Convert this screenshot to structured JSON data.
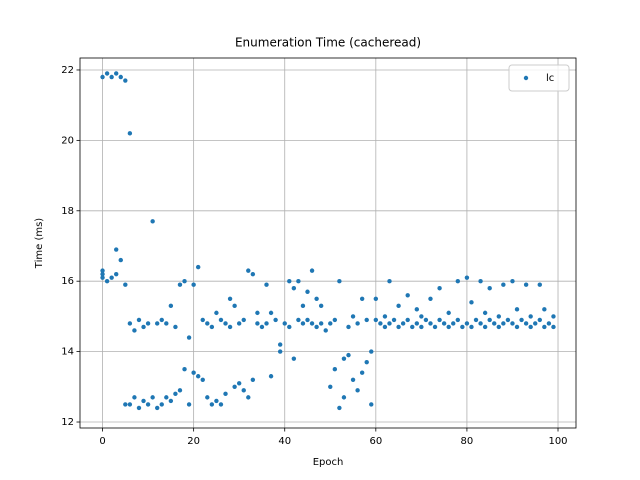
{
  "chart_data": {
    "type": "scatter",
    "title": "Enumeration Time (cacheread)",
    "x_label": "Epoch",
    "y_label": "Time (ms)",
    "xlim": [
      -4.95,
      103.95
    ],
    "ylim": [
      11.83,
      22.34
    ],
    "xticks": [
      0,
      20,
      40,
      60,
      80,
      100
    ],
    "yticks": [
      12,
      14,
      16,
      18,
      20,
      22
    ],
    "grid": true,
    "legend": "upper right",
    "series": [
      {
        "name": "lc",
        "color": "#1f77b4",
        "x": [
          0,
          0,
          0,
          0,
          1,
          1,
          2,
          2,
          3,
          3,
          3,
          4,
          4,
          5,
          5,
          5,
          6,
          6,
          6,
          7,
          7,
          8,
          8,
          9,
          9,
          10,
          10,
          11,
          11,
          12,
          12,
          13,
          13,
          14,
          14,
          15,
          15,
          16,
          16,
          17,
          17,
          18,
          18,
          19,
          19,
          20,
          20,
          21,
          21,
          22,
          22,
          23,
          23,
          24,
          24,
          25,
          25,
          26,
          26,
          27,
          27,
          28,
          28,
          29,
          29,
          30,
          30,
          31,
          31,
          32,
          32,
          33,
          33,
          34,
          34,
          35,
          36,
          36,
          37,
          37,
          38,
          39,
          39,
          40,
          41,
          41,
          42,
          42,
          43,
          43,
          44,
          44,
          45,
          45,
          46,
          46,
          47,
          47,
          48,
          48,
          49,
          50,
          50,
          51,
          51,
          52,
          52,
          53,
          53,
          54,
          54,
          55,
          55,
          56,
          56,
          57,
          57,
          58,
          58,
          59,
          59,
          60,
          60,
          61,
          62,
          62,
          63,
          63,
          64,
          65,
          65,
          66,
          67,
          67,
          68,
          69,
          69,
          70,
          70,
          71,
          72,
          72,
          73,
          74,
          74,
          75,
          76,
          76,
          77,
          78,
          78,
          79,
          80,
          80,
          81,
          81,
          82,
          83,
          83,
          84,
          84,
          85,
          85,
          86,
          87,
          87,
          88,
          88,
          89,
          90,
          90,
          91,
          91,
          92,
          93,
          93,
          94,
          94,
          95,
          96,
          96,
          97,
          97,
          98,
          99,
          99
        ],
        "values": [
          16.3,
          16.2,
          16.1,
          21.8,
          21.9,
          16.0,
          16.1,
          21.8,
          21.9,
          16.9,
          16.2,
          21.8,
          16.6,
          21.7,
          15.9,
          12.5,
          20.2,
          14.8,
          12.5,
          14.6,
          12.7,
          14.9,
          12.4,
          14.7,
          12.6,
          14.8,
          12.5,
          17.7,
          12.7,
          14.8,
          12.4,
          14.9,
          12.5,
          14.8,
          12.7,
          15.3,
          12.6,
          14.7,
          12.8,
          15.9,
          12.9,
          16.0,
          13.5,
          14.4,
          12.5,
          15.9,
          13.4,
          16.4,
          13.3,
          14.9,
          13.2,
          14.8,
          12.7,
          14.7,
          12.5,
          15.1,
          12.6,
          14.9,
          12.5,
          14.8,
          12.8,
          15.5,
          14.7,
          15.3,
          13.0,
          14.8,
          13.1,
          14.9,
          12.9,
          16.3,
          12.7,
          16.2,
          13.2,
          15.1,
          14.8,
          14.7,
          15.9,
          14.8,
          13.3,
          15.1,
          14.9,
          14.2,
          14.0,
          14.8,
          16.0,
          14.7,
          15.8,
          13.8,
          16.0,
          14.9,
          15.3,
          14.8,
          15.7,
          14.9,
          16.3,
          14.8,
          15.5,
          14.7,
          15.3,
          14.8,
          14.6,
          13.0,
          14.8,
          13.5,
          14.9,
          16.0,
          12.4,
          13.8,
          12.7,
          14.7,
          13.9,
          13.2,
          15.0,
          12.9,
          14.8,
          13.4,
          15.5,
          13.7,
          14.9,
          14.0,
          12.5,
          15.5,
          14.9,
          14.8,
          15.0,
          14.7,
          16.0,
          14.8,
          14.9,
          15.3,
          14.7,
          14.8,
          15.6,
          14.9,
          14.7,
          15.2,
          14.8,
          15.0,
          14.7,
          14.9,
          15.5,
          14.8,
          14.7,
          15.8,
          14.9,
          14.8,
          15.1,
          14.7,
          14.8,
          16.0,
          14.9,
          14.7,
          16.1,
          14.8,
          15.4,
          14.7,
          14.9,
          16.0,
          14.8,
          15.1,
          14.7,
          15.8,
          14.9,
          14.8,
          15.0,
          14.7,
          15.9,
          14.8,
          14.9,
          16.0,
          14.8,
          15.2,
          14.7,
          14.9,
          15.9,
          14.8,
          15.0,
          14.7,
          14.8,
          15.9,
          14.9,
          15.2,
          14.7,
          14.8,
          15.0,
          14.7
        ]
      }
    ]
  }
}
